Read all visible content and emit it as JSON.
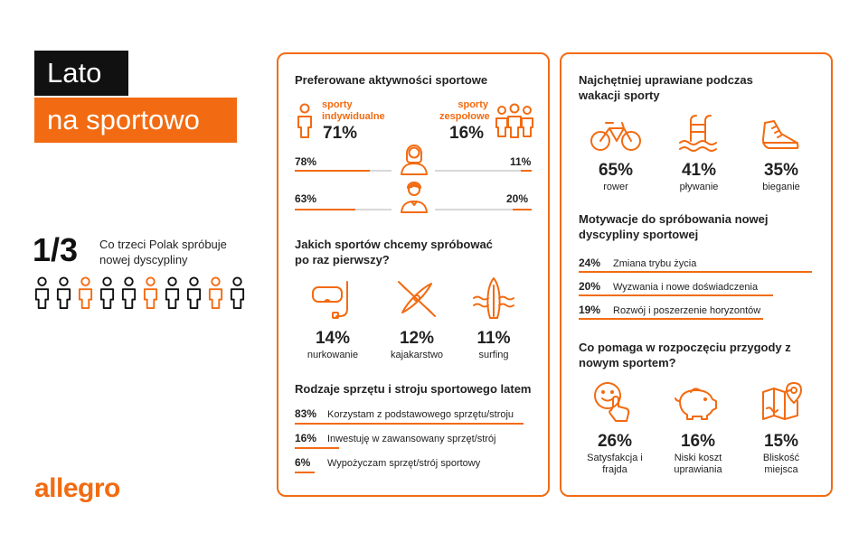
{
  "title": {
    "line1": "Lato",
    "line2": "na sportowo"
  },
  "fraction": {
    "value": "1/3",
    "text": "Co trzeci Polak spróbuje nowej dyscypliny"
  },
  "people_row": {
    "total": 10,
    "highlighted_indices": [
      2,
      5,
      8
    ]
  },
  "logo": "allegro",
  "colors": {
    "accent": "#f26b12",
    "dark": "#111111"
  },
  "left_panel": {
    "preferred": {
      "heading": "Preferowane aktywności sportowe",
      "individual": {
        "label": "sporty indywidualne",
        "pct": "71%"
      },
      "team": {
        "label": "sporty zespołowe",
        "pct": "16%"
      },
      "women": {
        "left": "78%",
        "right": "11%",
        "left_value": 78,
        "right_value": 11
      },
      "men": {
        "left": "63%",
        "right": "20%",
        "left_value": 63,
        "right_value": 20
      }
    },
    "try_first": {
      "heading": "Jakich sportów chcemy spróbować po raz pierwszy?",
      "items": [
        {
          "icon": "snorkel-mask-icon",
          "pct": "14%",
          "label": "nurkowanie"
        },
        {
          "icon": "kayak-icon",
          "pct": "12%",
          "label": "kajakarstwo"
        },
        {
          "icon": "surfboard-icon",
          "pct": "11%",
          "label": "surfing"
        }
      ]
    },
    "equipment": {
      "heading": "Rodzaje sprzętu i stroju sportowego latem",
      "rows": [
        {
          "pct": "83%",
          "label": "Korzystam z podstawowego sprzętu/stroju",
          "value": 83
        },
        {
          "pct": "16%",
          "label": "Inwestuję w zawansowany sprzęt/strój",
          "value": 16
        },
        {
          "pct": "6%",
          "label": "Wypożyczam sprzęt/strój sportowy",
          "value": 6
        }
      ]
    }
  },
  "right_panel": {
    "vacation": {
      "heading": "Najchętniej uprawiane podczas wakacji sporty",
      "items": [
        {
          "icon": "bicycle-icon",
          "pct": "65%",
          "label": "rower"
        },
        {
          "icon": "pool-ladder-icon",
          "pct": "41%",
          "label": "pływanie"
        },
        {
          "icon": "running-shoe-icon",
          "pct": "35%",
          "label": "bieganie"
        }
      ]
    },
    "motivation": {
      "heading": "Motywacje do spróbowania nowej dyscypliny sportowej",
      "rows": [
        {
          "pct": "24%",
          "label": "Zmiana trybu życia",
          "value": 24
        },
        {
          "pct": "20%",
          "label": "Wyzwania i nowe doświadczenia",
          "value": 20
        },
        {
          "pct": "19%",
          "label": "Rozwój i poszerzenie horyzontów",
          "value": 19
        }
      ]
    },
    "helps": {
      "heading": "Co pomaga w rozpoczęciu przygody z nowym sportem?",
      "items": [
        {
          "icon": "smiley-hand-icon",
          "pct": "26%",
          "label": "Satysfakcja i frajda"
        },
        {
          "icon": "piggy-bank-icon",
          "pct": "16%",
          "label": "Niski koszt uprawiania"
        },
        {
          "icon": "map-pin-icon",
          "pct": "15%",
          "label": "Bliskość miejsca"
        }
      ]
    }
  }
}
